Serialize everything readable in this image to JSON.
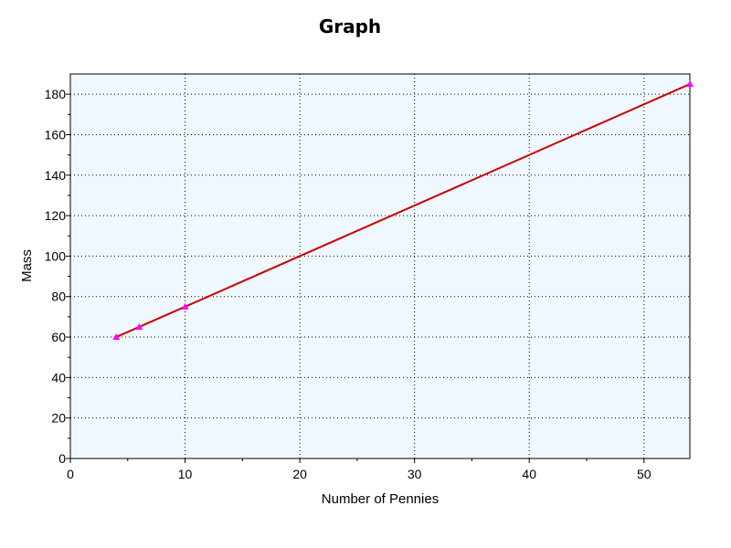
{
  "chart_data": {
    "type": "line",
    "title": "Graph",
    "xlabel": "Number of Pennies",
    "ylabel": "Mass",
    "xlim": [
      0,
      54
    ],
    "ylim": [
      0,
      190
    ],
    "x_ticks": [
      0,
      10,
      20,
      30,
      40,
      50
    ],
    "y_ticks": [
      0,
      20,
      40,
      60,
      80,
      100,
      120,
      140,
      160,
      180
    ],
    "grid": true,
    "legend": "none",
    "series": [
      {
        "x": [
          4,
          6,
          10,
          54
        ],
        "y": [
          60,
          65,
          75,
          185
        ],
        "line_color": "#cc0000",
        "marker_color": "#ff00ff",
        "marker": "triangle"
      }
    ],
    "plot_background": "#f0f8ff"
  }
}
